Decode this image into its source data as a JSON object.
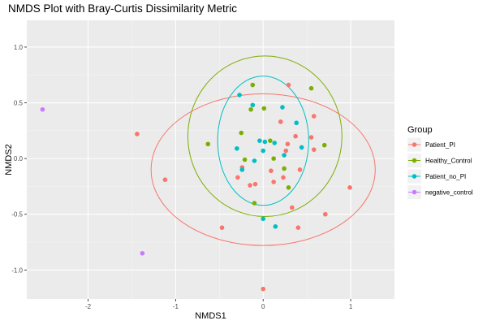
{
  "chart_data": {
    "type": "scatter",
    "title": "NMDS Plot with Bray-Curtis Dissimilarity Metric",
    "xlabel": "NMDS1",
    "ylabel": "NMDS2",
    "xlim": [
      -2.7,
      1.5
    ],
    "ylim": [
      -1.26,
      1.24
    ],
    "x_ticks": [
      -2,
      -1,
      0,
      1
    ],
    "x_tick_labels": [
      "-2",
      "-1",
      "0",
      "1"
    ],
    "y_ticks": [
      -1.0,
      -0.5,
      0.0,
      0.5,
      1.0
    ],
    "y_tick_labels": [
      "-1.0",
      "-0.5",
      "0.0",
      "0.5",
      "1.0"
    ],
    "grid": true,
    "legend": {
      "title": "Group",
      "position": "right",
      "entries": [
        "Patient_PI",
        "Healthy_Control",
        "Patient_no_PI",
        "negative_control"
      ]
    },
    "colors": {
      "Patient_PI": "#F8766D",
      "Healthy_Control": "#7CAE00",
      "Patient_no_PI": "#00BFC4",
      "negative_control": "#C77CFF"
    },
    "series": [
      {
        "name": "Patient_PI",
        "points": [
          [
            -1.44,
            0.22
          ],
          [
            -1.12,
            -0.19
          ],
          [
            -0.47,
            -0.62
          ],
          [
            -0.29,
            -0.17
          ],
          [
            -0.24,
            -0.08
          ],
          [
            -0.15,
            -0.24
          ],
          [
            -0.09,
            -0.23
          ],
          [
            0.0,
            -1.17
          ],
          [
            0.09,
            -0.11
          ],
          [
            0.12,
            -0.21
          ],
          [
            0.2,
            0.33
          ],
          [
            0.23,
            -0.17
          ],
          [
            0.26,
            0.07
          ],
          [
            0.28,
            0.13
          ],
          [
            0.33,
            -0.44
          ],
          [
            0.37,
            0.2
          ],
          [
            0.4,
            -0.62
          ],
          [
            0.42,
            -0.1
          ],
          [
            0.55,
            0.19
          ],
          [
            0.58,
            0.38
          ],
          [
            0.58,
            0.08
          ],
          [
            0.71,
            -0.5
          ],
          [
            0.99,
            -0.26
          ],
          [
            0.29,
            0.66
          ]
        ]
      },
      {
        "name": "Healthy_Control",
        "points": [
          [
            -0.63,
            0.13
          ],
          [
            -0.25,
            0.23
          ],
          [
            -0.21,
            -0.01
          ],
          [
            -0.14,
            0.44
          ],
          [
            -0.12,
            0.66
          ],
          [
            -0.1,
            -0.4
          ],
          [
            0.01,
            0.45
          ],
          [
            0.08,
            0.16
          ],
          [
            0.12,
            0.0
          ],
          [
            0.24,
            -0.09
          ],
          [
            0.29,
            -0.26
          ],
          [
            0.55,
            0.63
          ],
          [
            0.7,
            0.12
          ]
        ]
      },
      {
        "name": "Patient_no_PI",
        "points": [
          [
            -0.27,
            0.57
          ],
          [
            -0.3,
            0.09
          ],
          [
            -0.24,
            -0.1
          ],
          [
            -0.12,
            0.48
          ],
          [
            -0.1,
            -0.02
          ],
          [
            -0.04,
            0.16
          ],
          [
            0.0,
            -0.54
          ],
          [
            0.02,
            0.15
          ],
          [
            0.0,
            0.07
          ],
          [
            0.13,
            0.14
          ],
          [
            0.14,
            -0.61
          ],
          [
            0.22,
            0.46
          ],
          [
            0.24,
            0.03
          ],
          [
            0.38,
            0.32
          ],
          [
            0.44,
            0.1
          ]
        ]
      },
      {
        "name": "negative_control",
        "points": [
          [
            -2.52,
            0.44
          ],
          [
            -1.38,
            -0.85
          ]
        ]
      }
    ],
    "ellipses": [
      {
        "group": "Patient_PI",
        "center": [
          0.0,
          -0.1
        ],
        "radii": [
          1.28,
          0.68
        ]
      },
      {
        "group": "Healthy_Control",
        "center": [
          0.02,
          0.2
        ],
        "radii": [
          0.88,
          0.72
        ]
      },
      {
        "group": "Patient_no_PI",
        "center": [
          0.0,
          0.16
        ],
        "radii": [
          0.52,
          0.58
        ]
      }
    ]
  }
}
